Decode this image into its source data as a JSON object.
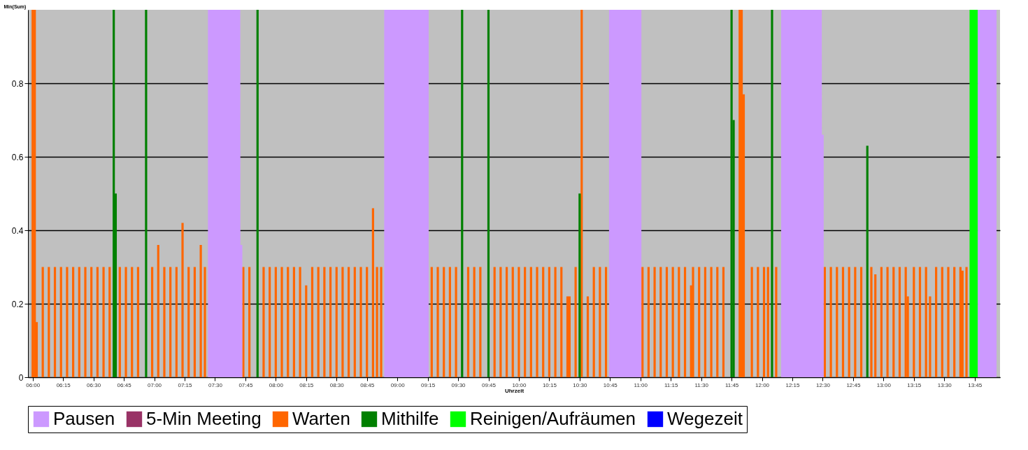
{
  "chart_data": {
    "type": "bar",
    "xlabel": "Uhrzeit",
    "ylabel": "Min(Sum)",
    "xlim": [
      5.99,
      13.93
    ],
    "ylim": [
      0,
      1
    ],
    "yticks": [
      0,
      0.2,
      0.4,
      0.6,
      0.8
    ],
    "xticks": [
      {
        "value": 6,
        "label": "06:00"
      },
      {
        "value": 6.25,
        "label": "06:15"
      },
      {
        "value": 6.5,
        "label": "06:30"
      },
      {
        "value": 6.75,
        "label": "06:45"
      },
      {
        "value": 7,
        "label": "07:00"
      },
      {
        "value": 7.25,
        "label": "07:15"
      },
      {
        "value": 7.5,
        "label": "07:30"
      },
      {
        "value": 7.75,
        "label": "07:45"
      },
      {
        "value": 8,
        "label": "08:00"
      },
      {
        "value": 8.25,
        "label": "08:15"
      },
      {
        "value": 8.5,
        "label": "08:30"
      },
      {
        "value": 8.75,
        "label": "08:45"
      },
      {
        "value": 9,
        "label": "09:00"
      },
      {
        "value": 9.25,
        "label": "09:15"
      },
      {
        "value": 9.5,
        "label": "09:30"
      },
      {
        "value": 9.75,
        "label": "09:45"
      },
      {
        "value": 10,
        "label": "10:00"
      },
      {
        "value": 10.25,
        "label": "10:15"
      },
      {
        "value": 10.5,
        "label": "10:30"
      },
      {
        "value": 10.75,
        "label": "10:45"
      },
      {
        "value": 11,
        "label": "11:00"
      },
      {
        "value": 11.25,
        "label": "11:15"
      },
      {
        "value": 11.5,
        "label": "11:30"
      },
      {
        "value": 11.75,
        "label": "11:45"
      },
      {
        "value": 12,
        "label": "12:00"
      },
      {
        "value": 12.25,
        "label": "12:15"
      },
      {
        "value": 12.5,
        "label": "12:30"
      },
      {
        "value": 12.75,
        "label": "12:45"
      },
      {
        "value": 13,
        "label": "13:00"
      },
      {
        "value": 13.25,
        "label": "13:15"
      },
      {
        "value": 13.5,
        "label": "13:30"
      },
      {
        "value": 13.75,
        "label": "13:45"
      }
    ],
    "grid": "y",
    "legend": "bottom",
    "series": [
      {
        "name": "Pausen",
        "type": "area",
        "color": "#cc99ff",
        "x": [
          7.442,
          7.708,
          7.709,
          7.725,
          8.0,
          8.892,
          9.258,
          10.0,
          10.742,
          11.008,
          11.5,
          12.158,
          12.492,
          12.493,
          12.508,
          13.0,
          13.775,
          13.93
        ],
        "values": [
          1,
          1,
          0.36,
          0.36,
          null,
          1,
          1,
          null,
          1,
          1,
          null,
          1,
          1,
          0.66,
          0.66,
          null,
          1,
          1
        ]
      },
      {
        "name": "5-Min Meeting",
        "color": "#993366"
      },
      {
        "name": "Warten",
        "color": "#ff6600",
        "x": [
          6.0,
          6.017,
          6.033,
          6.083,
          6.133,
          6.183,
          6.233,
          6.283,
          6.333,
          6.383,
          6.433,
          6.483,
          6.533,
          6.583,
          6.633,
          6.717,
          6.767,
          6.817,
          6.867,
          6.983,
          7.033,
          7.083,
          7.133,
          7.183,
          7.233,
          7.283,
          7.333,
          7.383,
          7.417,
          7.733,
          7.783,
          7.9,
          7.95,
          8.0,
          8.05,
          8.1,
          8.15,
          8.2,
          8.25,
          8.3,
          8.35,
          8.4,
          8.45,
          8.5,
          8.55,
          8.6,
          8.65,
          8.7,
          8.75,
          8.8,
          8.833,
          8.867,
          9.283,
          9.333,
          9.383,
          9.433,
          9.483,
          9.583,
          9.633,
          9.683,
          9.8,
          9.85,
          9.9,
          9.95,
          10.0,
          10.05,
          10.1,
          10.15,
          10.2,
          10.25,
          10.3,
          10.35,
          10.4,
          10.417,
          10.467,
          10.517,
          10.567,
          10.617,
          10.667,
          10.717,
          11.017,
          11.067,
          11.117,
          11.167,
          11.217,
          11.267,
          11.317,
          11.367,
          11.417,
          11.433,
          11.483,
          11.533,
          11.583,
          11.633,
          11.683,
          11.817,
          11.833,
          11.85,
          11.917,
          11.967,
          12.017,
          12.05,
          12.117,
          12.517,
          12.567,
          12.617,
          12.667,
          12.717,
          12.767,
          12.817,
          12.9,
          12.933,
          12.983,
          13.033,
          13.083,
          13.133,
          13.183,
          13.2,
          13.25,
          13.3,
          13.35,
          13.383,
          13.433,
          13.483,
          13.533,
          13.583,
          13.633,
          13.65,
          13.683
        ],
        "values": [
          1,
          1,
          0.15,
          0.3,
          0.3,
          0.3,
          0.3,
          0.3,
          0.3,
          0.3,
          0.3,
          0.3,
          0.3,
          0.3,
          0.3,
          0.3,
          0.3,
          0.3,
          0.3,
          0.3,
          0.36,
          0.3,
          0.3,
          0.3,
          0.42,
          0.3,
          0.3,
          0.36,
          0.3,
          0.3,
          0.3,
          0.3,
          0.3,
          0.3,
          0.3,
          0.3,
          0.3,
          0.3,
          0.25,
          0.3,
          0.3,
          0.3,
          0.3,
          0.3,
          0.3,
          0.3,
          0.3,
          0.3,
          0.3,
          0.46,
          0.3,
          0.3,
          0.3,
          0.3,
          0.3,
          0.3,
          0.3,
          0.3,
          0.3,
          0.3,
          0.3,
          0.3,
          0.3,
          0.3,
          0.3,
          0.3,
          0.3,
          0.3,
          0.3,
          0.3,
          0.3,
          0.3,
          0.22,
          0.22,
          0.3,
          1,
          0.22,
          0.3,
          0.3,
          0.3,
          0.3,
          0.3,
          0.3,
          0.3,
          0.3,
          0.3,
          0.3,
          0.3,
          0.25,
          0.3,
          0.3,
          0.3,
          0.3,
          0.3,
          0.3,
          1,
          1,
          0.77,
          0.3,
          0.3,
          0.3,
          0.3,
          0.3,
          0.3,
          0.3,
          0.3,
          0.3,
          0.3,
          0.3,
          0.3,
          0.3,
          0.28,
          0.3,
          0.3,
          0.3,
          0.3,
          0.3,
          0.22,
          0.3,
          0.3,
          0.3,
          0.22,
          0.3,
          0.3,
          0.3,
          0.3,
          0.3,
          0.29,
          0.3
        ]
      },
      {
        "name": "Mithilfe",
        "color": "#008000",
        "x": [
          6.667,
          6.683,
          6.933,
          7.85,
          9.533,
          9.75,
          10.5,
          11.75,
          11.767,
          12.083,
          12.867
        ],
        "values": [
          1,
          0.5,
          1,
          1,
          1,
          1,
          0.5,
          1,
          0.7,
          1,
          0.63
        ]
      },
      {
        "name": "Reinigen/Aufräumen",
        "type": "area",
        "color": "#00ff00",
        "x": [
          13.708,
          13.775
        ],
        "values": [
          1,
          1
        ]
      },
      {
        "name": "Wegezeit",
        "color": "#0000ff"
      }
    ]
  }
}
